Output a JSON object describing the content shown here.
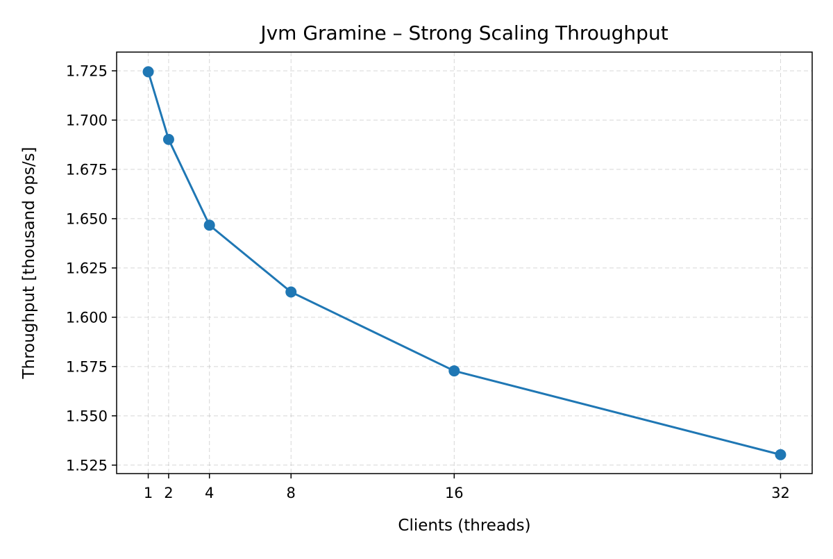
{
  "chart_data": {
    "type": "line",
    "title": "Jvm Gramine – Strong Scaling Throughput",
    "xlabel": "Clients (threads)",
    "ylabel": "Throughput [thousand ops/s]",
    "x": [
      1,
      2,
      4,
      8,
      16,
      32
    ],
    "x_tick_labels": [
      "1",
      "2",
      "4",
      "8",
      "16",
      "32"
    ],
    "xlim": [
      -0.55,
      33.55
    ],
    "y_ticks": [
      1.525,
      1.55,
      1.575,
      1.6,
      1.625,
      1.65,
      1.675,
      1.7,
      1.725
    ],
    "y_tick_labels": [
      "1.525",
      "1.550",
      "1.575",
      "1.600",
      "1.625",
      "1.650",
      "1.675",
      "1.700",
      "1.725"
    ],
    "ylim": [
      1.5207,
      1.7345
    ],
    "grid": true,
    "series": [
      {
        "values": [
          1.7245,
          1.6902,
          1.6467,
          1.6128,
          1.5728,
          1.5303
        ],
        "color": "#1f77b4",
        "marker": "circle"
      }
    ]
  }
}
